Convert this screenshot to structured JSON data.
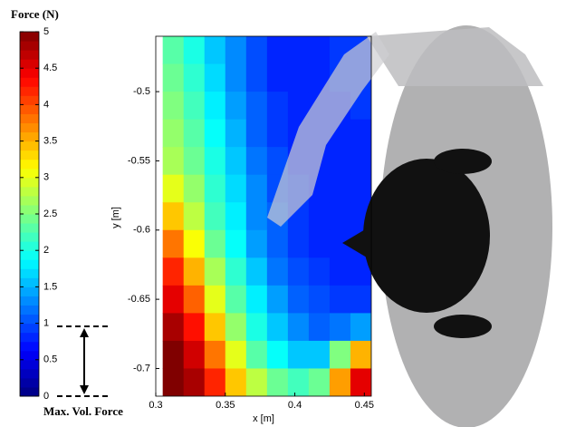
{
  "chart_data": {
    "type": "heatmap",
    "title": "Force (N)",
    "x_label": "x [m]",
    "y_label": "y [m]",
    "annotation": "Max. Vol. Force",
    "colormap": "jet",
    "x": [
      0.3125,
      0.3275,
      0.3425,
      0.3575,
      0.3725,
      0.3875,
      0.4025,
      0.4175,
      0.4325,
      0.4475
    ],
    "y": [
      -0.47,
      -0.49,
      -0.51,
      -0.53,
      -0.55,
      -0.57,
      -0.59,
      -0.61,
      -0.63,
      -0.65,
      -0.67,
      -0.69,
      -0.71
    ],
    "z": [
      [
        2.3,
        2.0,
        1.6,
        1.3,
        1.0,
        0.8,
        0.8,
        0.8,
        0.9,
        0.9
      ],
      [
        2.4,
        2.1,
        1.7,
        1.3,
        1.0,
        0.8,
        0.8,
        0.8,
        0.9,
        0.9
      ],
      [
        2.5,
        2.2,
        1.8,
        1.4,
        1.1,
        0.9,
        0.8,
        0.8,
        0.8,
        0.9
      ],
      [
        2.6,
        2.3,
        1.9,
        1.5,
        1.1,
        0.9,
        0.8,
        0.8,
        0.8,
        0.8
      ],
      [
        2.7,
        2.4,
        2.0,
        1.6,
        1.2,
        1.0,
        0.8,
        0.8,
        0.8,
        0.8
      ],
      [
        3.0,
        2.6,
        2.1,
        1.7,
        1.3,
        1.0,
        0.9,
        0.8,
        0.8,
        0.8
      ],
      [
        3.4,
        2.8,
        2.2,
        1.8,
        1.3,
        1.1,
        0.9,
        0.8,
        0.8,
        0.8
      ],
      [
        3.8,
        3.1,
        2.4,
        1.9,
        1.4,
        1.1,
        0.9,
        0.8,
        0.8,
        0.8
      ],
      [
        4.2,
        3.5,
        2.7,
        2.1,
        1.6,
        1.2,
        1.0,
        0.9,
        0.8,
        0.8
      ],
      [
        4.5,
        3.9,
        3.0,
        2.3,
        1.8,
        1.4,
        1.1,
        1.0,
        0.9,
        0.9
      ],
      [
        4.8,
        4.3,
        3.4,
        2.6,
        2.0,
        1.6,
        1.3,
        1.1,
        1.2,
        1.4
      ],
      [
        5.0,
        4.6,
        3.8,
        3.0,
        2.3,
        1.9,
        1.6,
        1.6,
        2.5,
        3.5
      ],
      [
        5.0,
        4.8,
        4.2,
        3.4,
        2.8,
        2.4,
        2.2,
        2.4,
        3.6,
        4.5
      ]
    ],
    "xlim": [
      0.3,
      0.455
    ],
    "ylim": [
      -0.72,
      -0.46
    ],
    "xticks": [
      0.3,
      0.35,
      0.4,
      0.45
    ],
    "yticks": [
      -0.7,
      -0.65,
      -0.6,
      -0.55,
      -0.5
    ],
    "colorbar": {
      "lim": [
        0,
        5
      ],
      "ticks": [
        0,
        0.5,
        1,
        1.5,
        2,
        2.5,
        3,
        3.5,
        4,
        4.5,
        5
      ]
    }
  }
}
